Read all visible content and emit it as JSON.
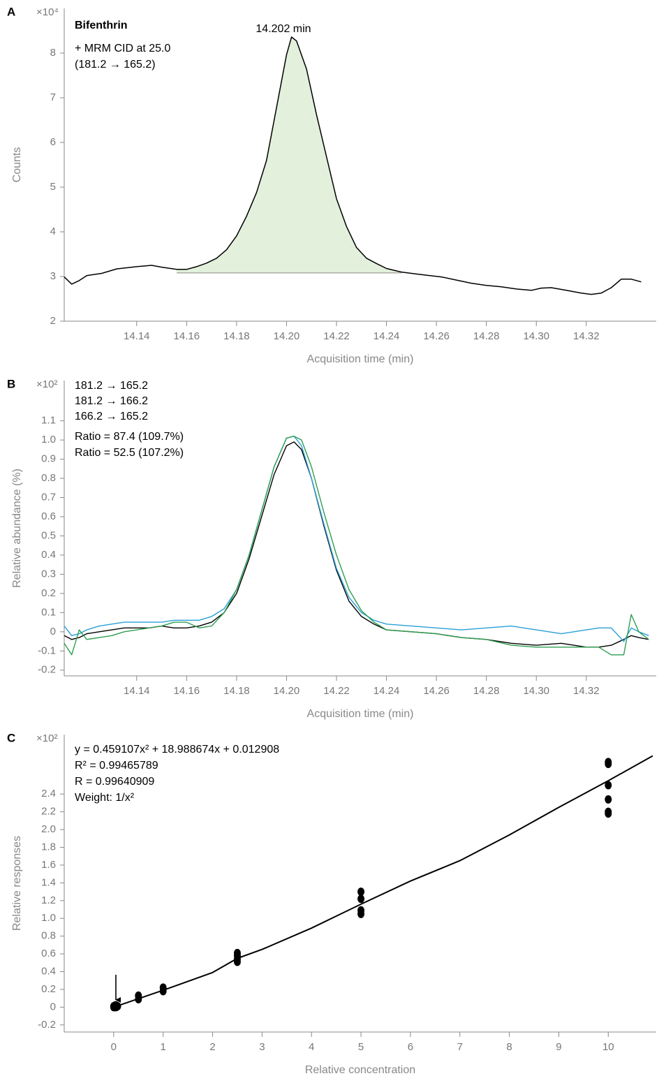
{
  "chart_data": [
    {
      "type": "line",
      "panel": "A",
      "y_multiplier": "×10⁴",
      "ylabel": "Counts",
      "xlabel": "Acquisition time (min)",
      "compound": "Bifenthrin",
      "scan_lines": [
        "+ MRM CID at 25.0",
        "(181.2 → 165.2)"
      ],
      "peak_label": "14.202 min",
      "xlim": [
        14.111,
        14.348
      ],
      "ylim": [
        2,
        9
      ],
      "xticks": [
        14.14,
        14.16,
        14.18,
        {
          "value": 14.2,
          "label": "14.20"
        },
        14.22,
        14.24,
        14.26,
        14.28,
        {
          "value": 14.3,
          "label": "14.30"
        },
        14.32
      ],
      "yticks": [
        2,
        3,
        4,
        5,
        6,
        7,
        8
      ],
      "color": "#000000",
      "x": [
        14.111,
        14.114,
        14.117,
        14.12,
        14.126,
        14.132,
        14.14,
        14.146,
        14.15,
        14.156,
        14.16,
        14.164,
        14.168,
        14.172,
        14.176,
        14.18,
        14.184,
        14.188,
        14.192,
        14.196,
        14.2,
        14.202,
        14.204,
        14.208,
        14.212,
        14.216,
        14.22,
        14.224,
        14.228,
        14.232,
        14.236,
        14.24,
        14.246,
        14.25,
        14.256,
        14.262,
        14.268,
        14.274,
        14.28,
        14.286,
        14.292,
        14.298,
        14.302,
        14.306,
        14.312,
        14.318,
        14.322,
        14.326,
        14.33,
        14.334,
        14.338,
        14.342
      ],
      "values": [
        2.99,
        2.83,
        2.91,
        3.02,
        3.07,
        3.17,
        3.22,
        3.25,
        3.21,
        3.16,
        3.16,
        3.22,
        3.3,
        3.41,
        3.6,
        3.91,
        4.35,
        4.88,
        5.6,
        6.78,
        7.96,
        8.36,
        8.27,
        7.64,
        6.62,
        5.68,
        4.74,
        4.12,
        3.65,
        3.41,
        3.29,
        3.18,
        3.1,
        3.07,
        3.03,
        2.99,
        2.92,
        2.85,
        2.8,
        2.77,
        2.72,
        2.69,
        2.74,
        2.75,
        2.69,
        2.63,
        2.6,
        2.63,
        2.75,
        2.94,
        2.94,
        2.88
      ],
      "peak_area": {
        "x_start": 14.156,
        "x_end": 14.246,
        "baseline": 3.08,
        "color": "#e2f0dc"
      }
    },
    {
      "type": "line",
      "panel": "B",
      "y_multiplier": "×10²",
      "ylabel": "Relative abundance (%)",
      "xlabel": "Acquisition time (min)",
      "xlim": [
        14.111,
        14.348
      ],
      "ylim": [
        -0.23,
        1.31
      ],
      "xticks": [
        14.14,
        14.16,
        14.18,
        {
          "value": 14.2,
          "label": "14.20"
        },
        14.22,
        14.24,
        14.26,
        14.28,
        {
          "value": 14.3,
          "label": "14.30"
        },
        14.32
      ],
      "yticks": [
        -0.2,
        -0.1,
        0,
        0.1,
        0.2,
        0.3,
        0.4,
        0.5,
        0.6,
        0.7,
        0.8,
        0.9,
        {
          "value": 1.0,
          "label": "1.0"
        },
        1.1
      ],
      "ratios": [
        {
          "text": "Ratio = 87.4 (109.7%)",
          "color": "#2a9fd6"
        },
        {
          "text": "Ratio = 52.5 (107.2%)",
          "color": "#2e9e4f"
        }
      ],
      "x": [
        14.111,
        14.114,
        14.117,
        14.12,
        14.125,
        14.13,
        14.135,
        14.14,
        14.145,
        14.15,
        14.155,
        14.16,
        14.165,
        14.17,
        14.175,
        14.18,
        14.185,
        14.19,
        14.195,
        14.2,
        14.203,
        14.206,
        14.21,
        14.215,
        14.22,
        14.225,
        14.23,
        14.235,
        14.24,
        14.25,
        14.26,
        14.27,
        14.28,
        14.29,
        14.3,
        14.31,
        14.32,
        14.325,
        14.33,
        14.335,
        14.338,
        14.341,
        14.345
      ],
      "series": [
        {
          "name": "181.2 → 165.2",
          "color": "#000000",
          "values": [
            -0.02,
            -0.04,
            -0.03,
            -0.01,
            0,
            0.01,
            0.02,
            0.02,
            0.02,
            0.03,
            0.02,
            0.02,
            0.03,
            0.05,
            0.1,
            0.2,
            0.38,
            0.6,
            0.82,
            0.97,
            0.99,
            0.95,
            0.8,
            0.55,
            0.32,
            0.16,
            0.08,
            0.04,
            0.01,
            0,
            -0.01,
            -0.03,
            -0.04,
            -0.06,
            -0.07,
            -0.06,
            -0.08,
            -0.08,
            -0.07,
            -0.04,
            -0.02,
            -0.03,
            -0.04
          ]
        },
        {
          "name": "181.2 → 166.2",
          "color": "#2a9fd6",
          "values": [
            0.03,
            -0.02,
            -0.01,
            0.01,
            0.03,
            0.04,
            0.05,
            0.05,
            0.05,
            0.05,
            0.06,
            0.06,
            0.06,
            0.08,
            0.12,
            0.22,
            0.4,
            0.63,
            0.86,
            1.01,
            1.02,
            0.97,
            0.8,
            0.56,
            0.33,
            0.18,
            0.1,
            0.06,
            0.04,
            0.03,
            0.02,
            0.01,
            0.02,
            0.03,
            0.01,
            -0.01,
            0.01,
            0.02,
            0.02,
            -0.05,
            0.02,
            0,
            -0.02
          ]
        },
        {
          "name": "166.2 → 165.2",
          "color": "#2e9e4f",
          "values": [
            -0.06,
            -0.12,
            0.01,
            -0.04,
            -0.03,
            -0.02,
            0,
            0.01,
            0.02,
            0.03,
            0.05,
            0.05,
            0.02,
            0.03,
            0.1,
            0.22,
            0.4,
            0.63,
            0.86,
            1.01,
            1.02,
            1,
            0.86,
            0.62,
            0.4,
            0.22,
            0.11,
            0.05,
            0.01,
            0,
            -0.01,
            -0.03,
            -0.04,
            -0.07,
            -0.08,
            -0.08,
            -0.08,
            -0.08,
            -0.12,
            -0.12,
            0.09,
            0,
            -0.04
          ]
        }
      ]
    },
    {
      "type": "scatter",
      "panel": "C",
      "y_multiplier": "×10²",
      "ylabel": "Relative responses",
      "xlabel": "Relative concentration",
      "equation": "y = 0.459107x² + 18.988674x + 0.012908",
      "r_squared": "R² = 0.99465789",
      "r": "R = 0.99640909",
      "weight": "Weight: 1/x²",
      "xlim": [
        -1,
        10.97
      ],
      "ylim": [
        -0.28,
        3.07
      ],
      "xticks": [
        0,
        1,
        2,
        3,
        4,
        5,
        6,
        7,
        8,
        9,
        10
      ],
      "yticks": [
        -0.2,
        0,
        0.2,
        0.4,
        0.6,
        0.8,
        {
          "value": 1.0,
          "label": "1.0"
        },
        1.2,
        1.4,
        1.6,
        1.8,
        {
          "value": 2.0,
          "label": "2.0"
        },
        2.2,
        2.4
      ],
      "color": "#000000",
      "x": [
        0,
        0,
        0.02,
        0.03,
        0.05,
        0.05,
        0.08,
        0.5,
        0.5,
        1,
        1,
        2.5,
        2.5,
        2.5,
        2.5,
        5,
        5,
        5,
        5,
        10,
        10,
        10,
        10,
        10,
        10
      ],
      "values": [
        0,
        0.01,
        0,
        0.02,
        0,
        0.02,
        0.01,
        0.09,
        0.13,
        0.18,
        0.22,
        0.51,
        0.54,
        0.58,
        0.61,
        1.05,
        1.09,
        1.22,
        1.3,
        2.18,
        2.2,
        2.34,
        2.5,
        2.74,
        2.76
      ],
      "fit": {
        "x": [
          0,
          1,
          2,
          2.5,
          3,
          4,
          5,
          6,
          7,
          8,
          9,
          10,
          10.9
        ],
        "values": [
          0,
          0.19,
          0.39,
          0.55,
          0.65,
          0.89,
          1.16,
          1.42,
          1.65,
          1.94,
          2.25,
          2.55,
          2.83
        ]
      }
    }
  ]
}
